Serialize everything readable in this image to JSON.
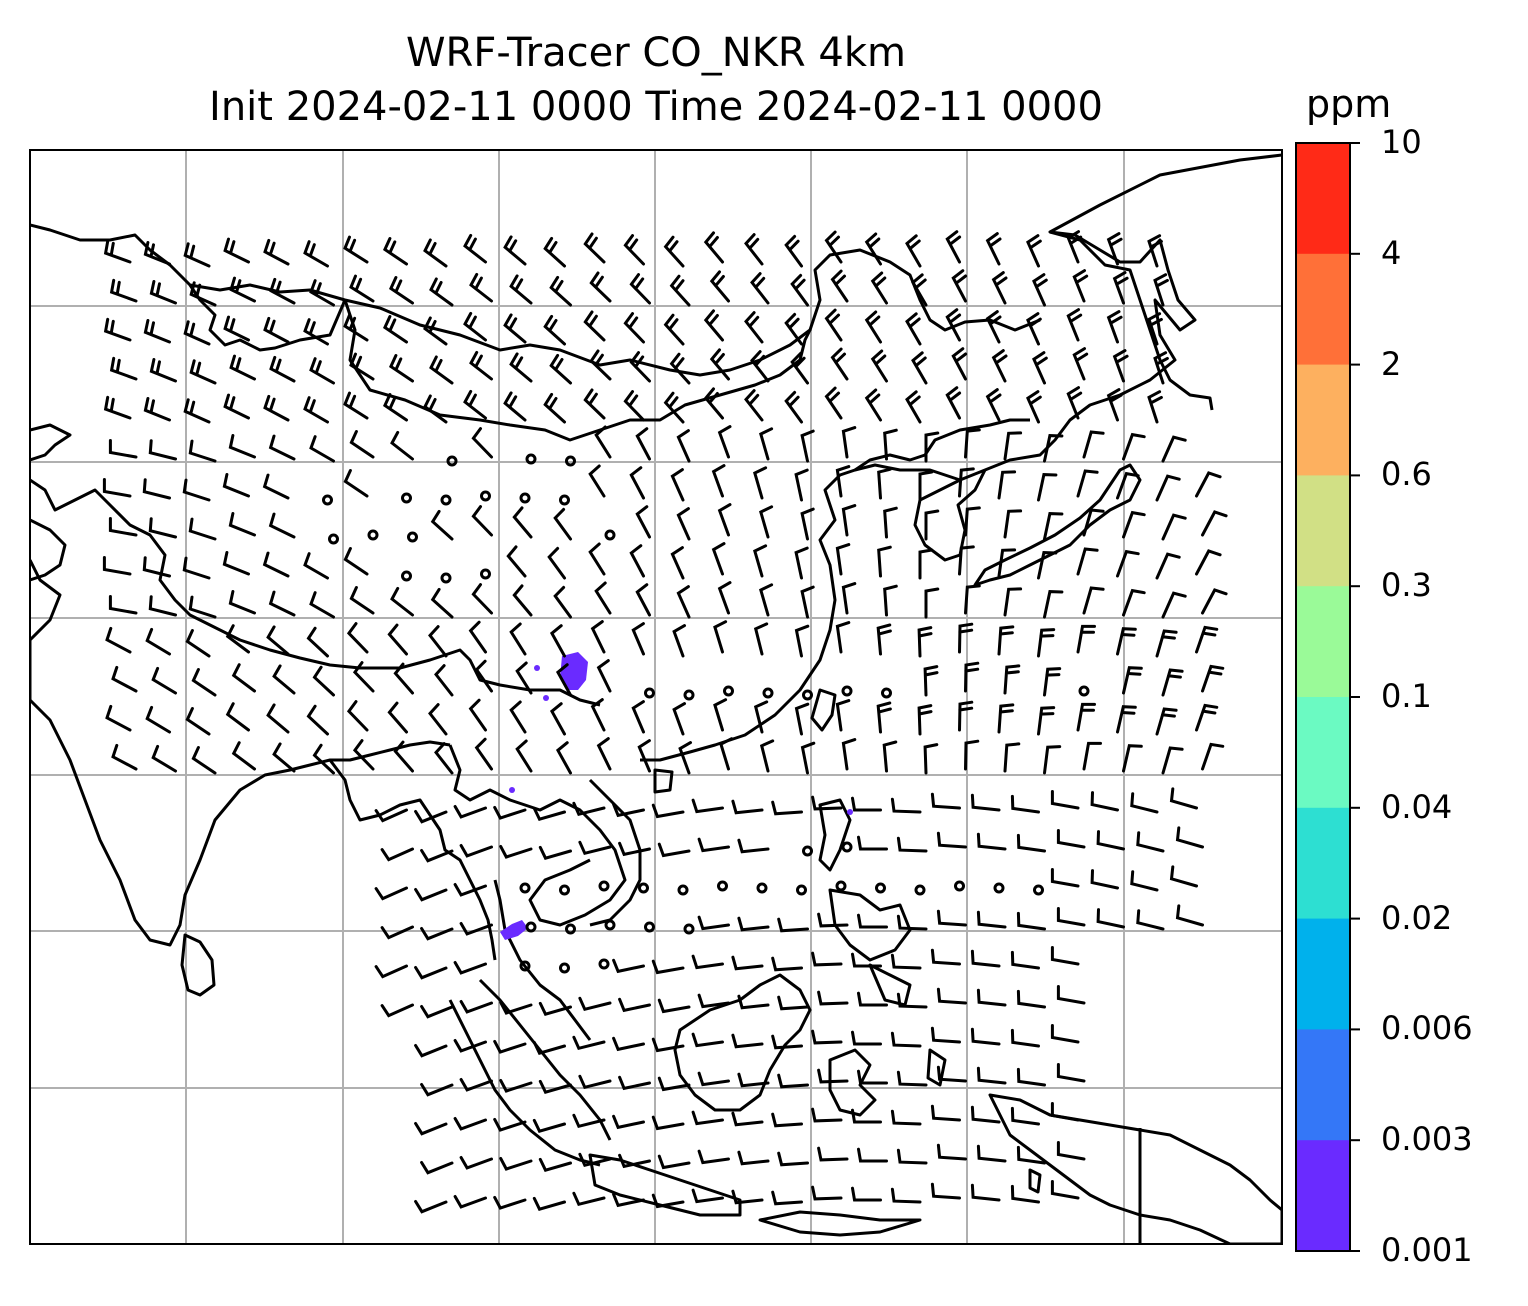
{
  "title_line1": "WRF-Tracer CO_NKR 4km",
  "title_line2": "Init 2024-02-11 0000 Time 2024-02-11 0000",
  "colorbar": {
    "unit": "ppm",
    "ticks": [
      "10",
      "4",
      "2",
      "0.6",
      "0.3",
      "0.1",
      "0.04",
      "0.02",
      "0.006",
      "0.003",
      "0.001"
    ],
    "colors": [
      "#ff2a17",
      "#ff7038",
      "#fdb05f",
      "#d1e085",
      "#9afa98",
      "#6bfac2",
      "#2ddfd2",
      "#00b1ec",
      "#3477f7",
      "#6a2bff"
    ]
  },
  "map": {
    "gridlines": 6,
    "overlay": "wind-barbs",
    "tracer_color": "#6a2bff"
  }
}
